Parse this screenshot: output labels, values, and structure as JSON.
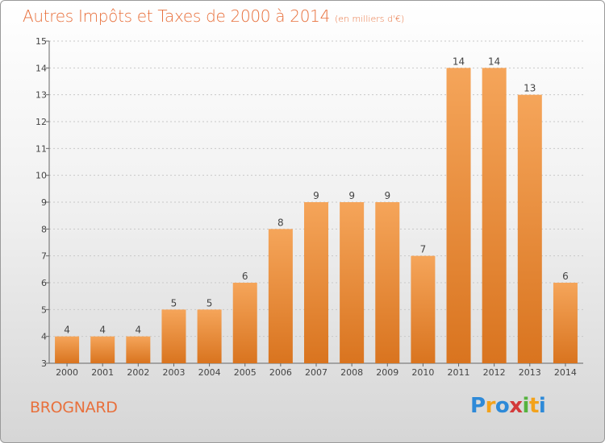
{
  "header": {
    "title": "Autres Impôts et Taxes de 2000 à 2014",
    "subtitle": "(en milliers d'€)"
  },
  "footer": {
    "commune": "BROGNARD",
    "logo_text": "Proxiti"
  },
  "colors": {
    "accent": "#e8703c",
    "bar_top": "#f5a55a",
    "bar_bottom": "#d9741f",
    "grid": "#c8c8c8",
    "axis": "#666666"
  },
  "chart_data": {
    "type": "bar",
    "categories": [
      "2000",
      "2001",
      "2002",
      "2003",
      "2004",
      "2005",
      "2006",
      "2007",
      "2008",
      "2009",
      "2010",
      "2011",
      "2012",
      "2013",
      "2014"
    ],
    "values": [
      4,
      4,
      4,
      5,
      5,
      6,
      8,
      9,
      9,
      9,
      7,
      14,
      14,
      13,
      6
    ],
    "title": "Autres Impôts et Taxes de 2000 à 2014",
    "subtitle": "(en milliers d'€)",
    "ylim": [
      3,
      15
    ],
    "yticks": [
      3,
      4,
      5,
      6,
      7,
      8,
      9,
      10,
      11,
      12,
      13,
      14,
      15
    ],
    "grid": true,
    "data_labels": true
  }
}
